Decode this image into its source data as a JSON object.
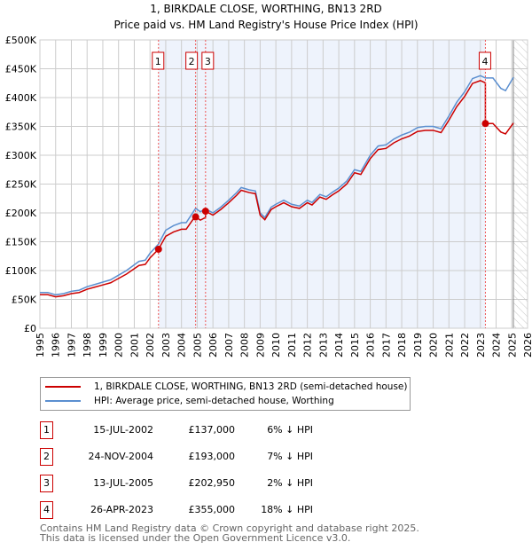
{
  "title": "1, BIRKDALE CLOSE, WORTHING, BN13 2RD",
  "subtitle": "Price paid vs. HM Land Registry's House Price Index (HPI)",
  "chart_data": {
    "type": "line",
    "xlim": [
      1995,
      2026
    ],
    "ylim": [
      0,
      500000
    ],
    "yticks": [
      0,
      50000,
      100000,
      150000,
      200000,
      250000,
      300000,
      350000,
      400000,
      450000,
      500000
    ],
    "ytick_labels": [
      "£0",
      "£50K",
      "£100K",
      "£150K",
      "£200K",
      "£250K",
      "£300K",
      "£350K",
      "£400K",
      "£450K",
      "£500K"
    ],
    "xticks": [
      1995,
      1996,
      1997,
      1998,
      1999,
      2000,
      2001,
      2002,
      2003,
      2004,
      2005,
      2006,
      2007,
      2008,
      2009,
      2010,
      2011,
      2012,
      2013,
      2014,
      2015,
      2016,
      2017,
      2018,
      2019,
      2020,
      2021,
      2022,
      2023,
      2024,
      2025,
      2026
    ],
    "forecast_start": 2025.1,
    "grid": true,
    "colors": {
      "property": "#cc0000",
      "hpi": "#5b8fd0",
      "shade": "#eef3fc"
    },
    "hpi_series": {
      "name": "HPI: Average price, semi-detached house, Worthing",
      "x": [
        1995,
        1995.5,
        1996,
        1996.5,
        1997,
        1997.5,
        1998,
        1998.5,
        1999,
        1999.5,
        2000,
        2000.5,
        2001,
        2001.3,
        2001.7,
        2002,
        2002.54,
        2003,
        2003.5,
        2004,
        2004.3,
        2004.9,
        2005.2,
        2005.53,
        2006,
        2006.5,
        2007,
        2007.5,
        2007.8,
        2008.3,
        2008.7,
        2009,
        2009.3,
        2009.7,
        2010,
        2010.5,
        2011,
        2011.5,
        2012,
        2012.3,
        2012.8,
        2013.2,
        2013.6,
        2014,
        2014.5,
        2015,
        2015.4,
        2016,
        2016.5,
        2017,
        2017.5,
        2018,
        2018.5,
        2019,
        2019.5,
        2020,
        2020.5,
        2021,
        2021.5,
        2022,
        2022.5,
        2023,
        2023.32,
        2023.8,
        2024.3,
        2024.6,
        2025.1
      ],
      "y": [
        62000,
        62000,
        58000,
        60000,
        64000,
        66000,
        72000,
        76000,
        80000,
        84000,
        92000,
        100000,
        110000,
        116000,
        118000,
        130000,
        146000,
        170000,
        178000,
        183000,
        183000,
        208000,
        202000,
        207000,
        200000,
        210000,
        222000,
        235000,
        244000,
        240000,
        238000,
        200000,
        192000,
        210000,
        215000,
        222000,
        215000,
        212000,
        222000,
        218000,
        232000,
        228000,
        236000,
        243000,
        255000,
        275000,
        272000,
        300000,
        316000,
        318000,
        328000,
        335000,
        340000,
        348000,
        350000,
        350000,
        346000,
        368000,
        392000,
        410000,
        433000,
        438000,
        434000,
        434000,
        416000,
        412000,
        435000
      ]
    },
    "property_series": {
      "name": "1, BIRKDALE CLOSE, WORTHING, BN13 2RD (semi-detached house)"
    },
    "sales": [
      {
        "label": "1",
        "x": 2002.54,
        "date": "15-JUL-2002",
        "price": 137000,
        "price_text": "£137,000",
        "hpi_text": "6% ↓ HPI"
      },
      {
        "label": "2",
        "x": 2004.9,
        "date": "24-NOV-2004",
        "price": 193000,
        "price_text": "£193,000",
        "hpi_text": "7% ↓ HPI"
      },
      {
        "label": "3",
        "x": 2005.53,
        "date": "13-JUL-2005",
        "price": 202950,
        "price_text": "£202,950",
        "hpi_text": "2% ↓ HPI"
      },
      {
        "label": "4",
        "x": 2023.32,
        "date": "26-APR-2023",
        "price": 355000,
        "price_text": "£355,000",
        "hpi_text": "18% ↓ HPI"
      }
    ]
  },
  "footer": {
    "line1": "Contains HM Land Registry data © Crown copyright and database right 2025.",
    "line2": "This data is licensed under the Open Government Licence v3.0."
  }
}
